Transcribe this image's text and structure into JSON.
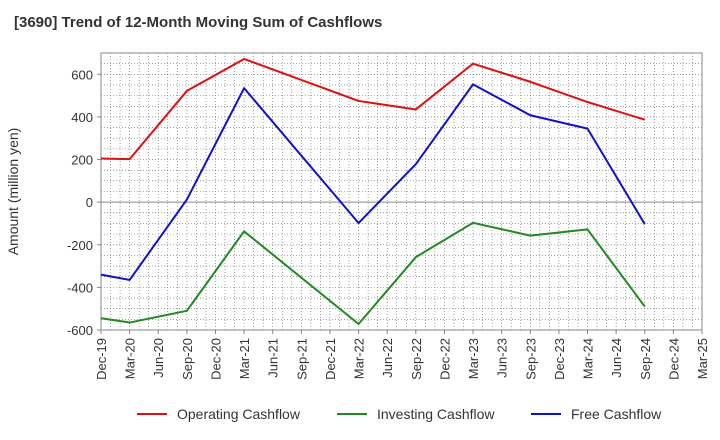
{
  "chart_data": {
    "type": "line",
    "title": "[3690]  Trend of 12-Month Moving Sum of Cashflows",
    "ylabel": "Amount (million yen)",
    "xlabel": "",
    "ylim": [
      -600,
      700
    ],
    "yticks": [
      -600,
      -400,
      -200,
      0,
      200,
      400,
      600
    ],
    "categories": [
      "Dec-19",
      "Mar-20",
      "Jun-20",
      "Sep-20",
      "Dec-20",
      "Mar-21",
      "Jun-21",
      "Sep-21",
      "Dec-21",
      "Mar-22",
      "Jun-22",
      "Sep-22",
      "Dec-22",
      "Mar-23",
      "Jun-23",
      "Sep-23",
      "Dec-23",
      "Mar-24",
      "Jun-24",
      "Sep-24",
      "Dec-24",
      "Mar-25"
    ],
    "grid": true,
    "legend_position": "bottom",
    "series": [
      {
        "name": "Operating Cashflow",
        "color": "#dd1111",
        "points": [
          [
            "Dec-19",
            205
          ],
          [
            "Mar-20",
            202
          ],
          [
            "Sep-20",
            522
          ],
          [
            "Mar-21",
            672
          ],
          [
            "Mar-22",
            475
          ],
          [
            "Sep-22",
            435
          ],
          [
            "Mar-23",
            650
          ],
          [
            "Sep-23",
            565
          ],
          [
            "Mar-24",
            470
          ],
          [
            "Sep-24",
            387
          ]
        ]
      },
      {
        "name": "Investing Cashflow",
        "color": "#228822",
        "points": [
          [
            "Dec-19",
            -545
          ],
          [
            "Mar-20",
            -565
          ],
          [
            "Sep-20",
            -510
          ],
          [
            "Mar-21",
            -137
          ],
          [
            "Mar-22",
            -572
          ],
          [
            "Sep-22",
            -258
          ],
          [
            "Mar-23",
            -97
          ],
          [
            "Sep-23",
            -157
          ],
          [
            "Mar-24",
            -128
          ],
          [
            "Sep-24",
            -490
          ]
        ]
      },
      {
        "name": "Free Cashflow",
        "color": "#1111cc",
        "points": [
          [
            "Dec-19",
            -340
          ],
          [
            "Mar-20",
            -365
          ],
          [
            "Sep-20",
            12
          ],
          [
            "Mar-21",
            535
          ],
          [
            "Mar-22",
            -98
          ],
          [
            "Sep-22",
            178
          ],
          [
            "Mar-23",
            553
          ],
          [
            "Sep-23",
            408
          ],
          [
            "Mar-24",
            345
          ],
          [
            "Sep-24",
            -103
          ]
        ]
      }
    ]
  }
}
